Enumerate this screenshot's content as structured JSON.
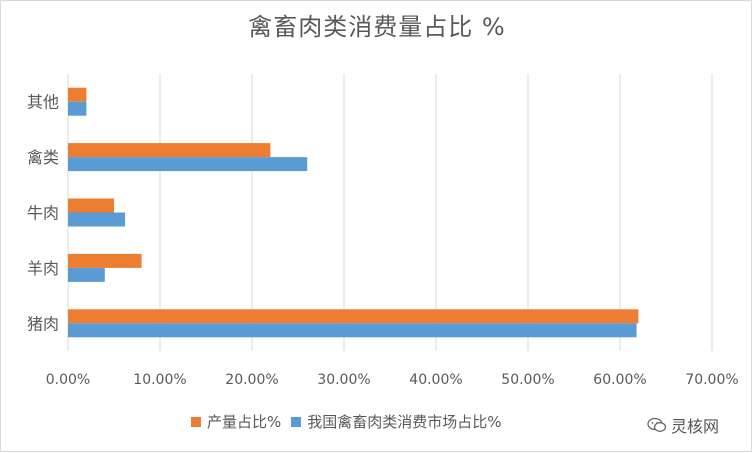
{
  "title": "禽畜肉类消费量占比 %",
  "colors": {
    "series1": "#ed7d31",
    "series2": "#5b9bd5",
    "grid": "#d9d9d9",
    "axis_text": "#595959"
  },
  "watermark": {
    "text": "灵核网",
    "icon": "wechat-icon"
  },
  "chart_data": {
    "type": "bar",
    "orientation": "horizontal",
    "categories": [
      "其他",
      "禽类",
      "牛肉",
      "羊肉",
      "猪肉"
    ],
    "series": [
      {
        "name": "产量占比%",
        "values": [
          0.02,
          0.22,
          0.05,
          0.08,
          0.62
        ],
        "color": "#ed7d31"
      },
      {
        "name": "我国禽畜肉类消费市场占比%",
        "values": [
          0.02,
          0.26,
          0.062,
          0.04,
          0.618
        ],
        "color": "#5b9bd5"
      }
    ],
    "xlim": [
      0,
      0.7
    ],
    "x_ticks": [
      0,
      0.1,
      0.2,
      0.3,
      0.4,
      0.5,
      0.6,
      0.7
    ],
    "x_tick_labels": [
      "0.00%",
      "10.00%",
      "20.00%",
      "30.00%",
      "40.00%",
      "50.00%",
      "60.00%",
      "70.00%"
    ],
    "grid": true,
    "legend_position": "bottom"
  }
}
